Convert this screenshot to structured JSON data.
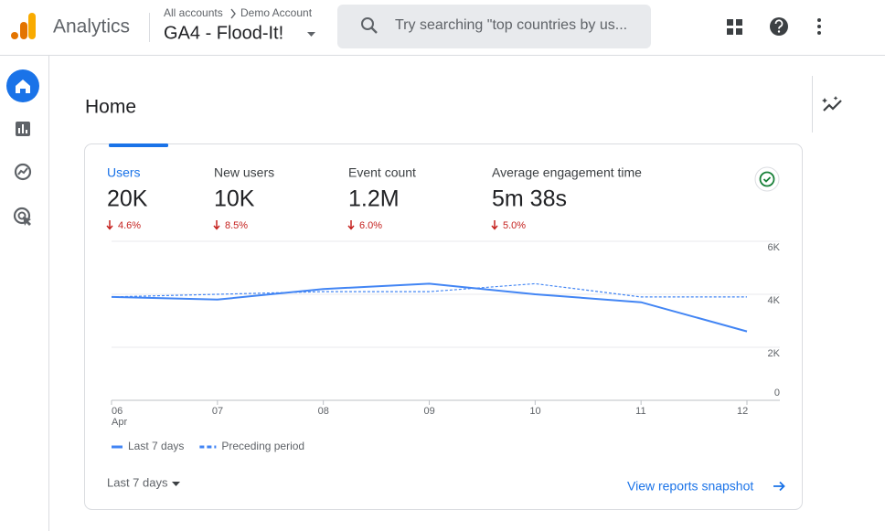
{
  "header": {
    "app_name": "Analytics",
    "breadcrumb": [
      "All accounts",
      "Demo Account"
    ],
    "property": "GA4 - Flood-It!",
    "search_placeholder": "Try searching \"top countries by us..."
  },
  "page_title": "Home",
  "metrics": [
    {
      "label": "Users",
      "value": "20K",
      "change": "4.6%"
    },
    {
      "label": "New users",
      "value": "10K",
      "change": "8.5%"
    },
    {
      "label": "Event count",
      "value": "1.2M",
      "change": "6.0%"
    },
    {
      "label": "Average engagement time",
      "value": "5m 38s",
      "change": "5.0%"
    }
  ],
  "chart_data": {
    "type": "line",
    "categories": [
      "06",
      "07",
      "08",
      "09",
      "10",
      "11",
      "12"
    ],
    "month_label": "Apr",
    "series": [
      {
        "name": "Last 7 days",
        "color": "#4285f4",
        "dashed": false,
        "values": [
          3900,
          3800,
          4200,
          4400,
          4000,
          3700,
          2600
        ]
      },
      {
        "name": "Preceding period",
        "color": "#4285f4",
        "dashed": true,
        "values": [
          3900,
          4000,
          4100,
          4100,
          4400,
          3900,
          3900
        ]
      }
    ],
    "ylim": [
      0,
      6000
    ],
    "yticks": [
      0,
      {
        "value": 2000,
        "label": "2K"
      },
      {
        "value": 4000,
        "label": "4K"
      },
      {
        "value": 6000,
        "label": "6K"
      }
    ],
    "grid": true,
    "y_axis_side": "right"
  },
  "footer": {
    "date_range": "Last 7 days",
    "link": "View reports snapshot"
  }
}
